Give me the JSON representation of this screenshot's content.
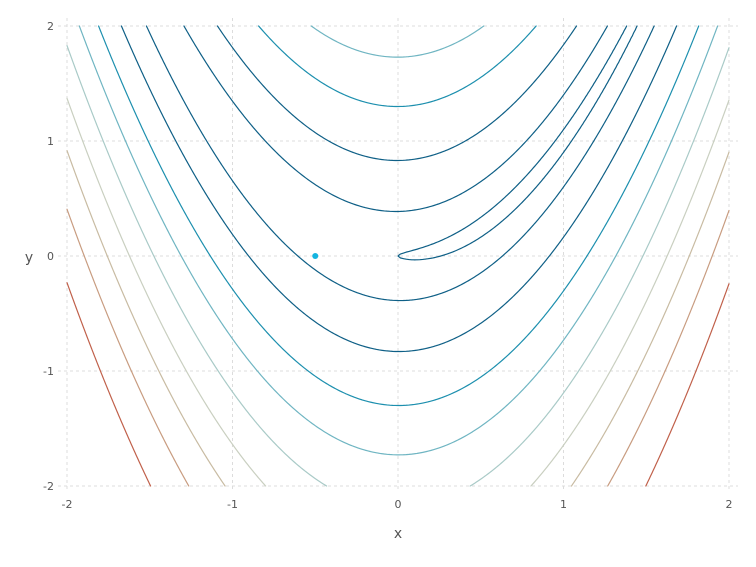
{
  "chart_data": {
    "type": "contour",
    "function": "Rosenbrock f(x,y) = (1 - x)^2 + 100 (y - x^2)^2",
    "xlabel": "x",
    "ylabel": "y",
    "xlim": [
      -2,
      2
    ],
    "ylim": [
      -2,
      2
    ],
    "x_ticks": [
      "-2",
      "-1",
      "0",
      "1",
      "2"
    ],
    "y_ticks": [
      "2",
      "1",
      "0",
      "-1",
      "-2"
    ],
    "grid": true,
    "contour_levels": [
      1,
      16,
      70,
      170,
      300,
      480,
      700,
      960,
      1300,
      1800
    ],
    "level_colors": [
      "#0e5f86",
      "#0e5f86",
      "#0e5f86",
      "#1c8fae",
      "#6fb5c2",
      "#a9cac7",
      "#c9cfc0",
      "#c8bba2",
      "#c89c80",
      "#c0604a"
    ],
    "point": {
      "x": -0.5,
      "y": 0.0,
      "color": "#14b4e0"
    }
  }
}
